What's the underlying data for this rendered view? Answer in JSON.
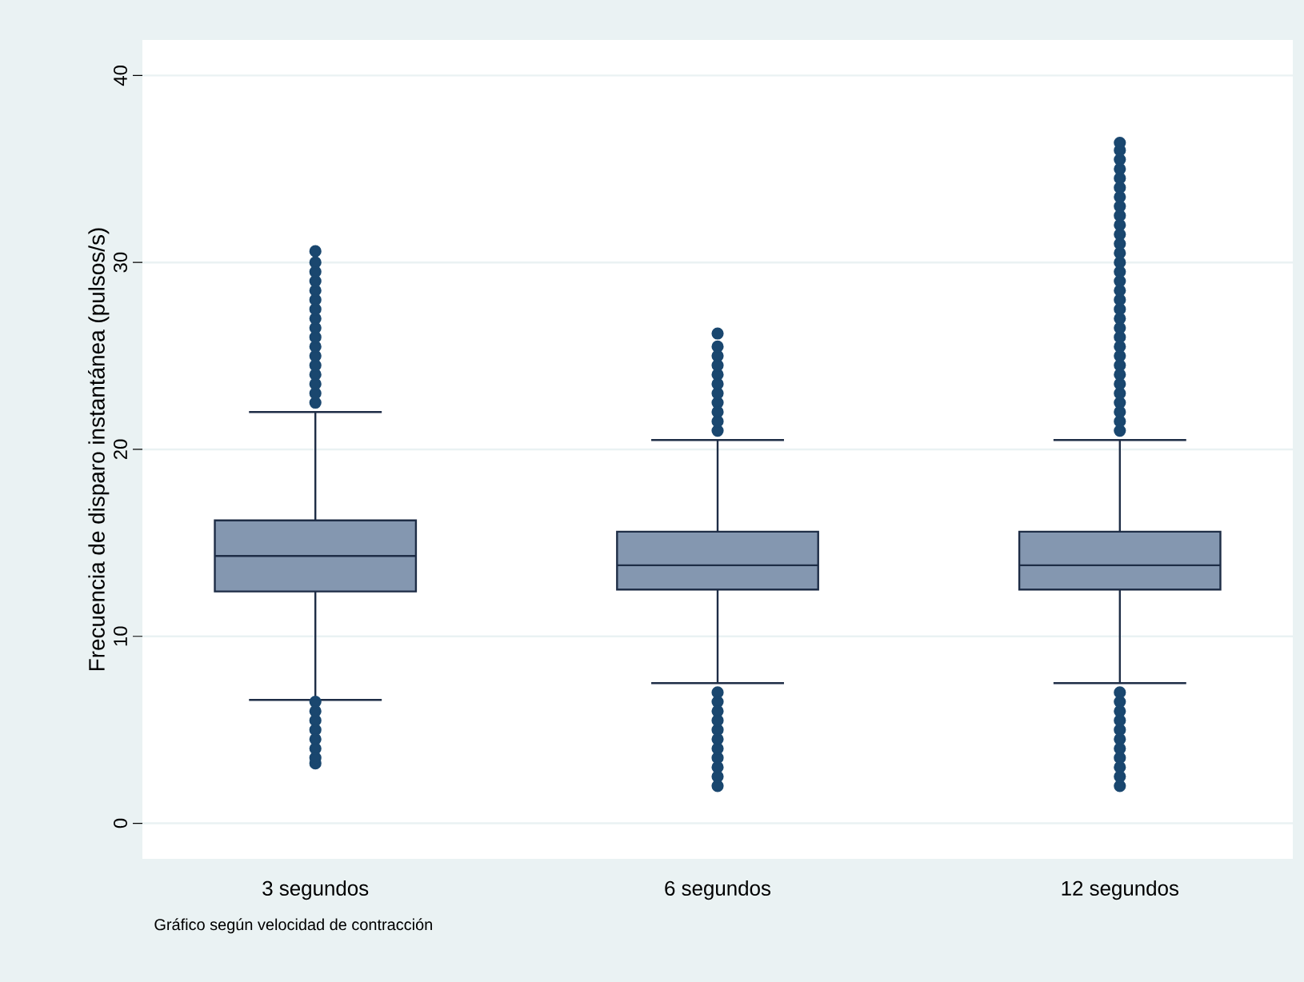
{
  "chart_data": {
    "type": "box",
    "ylabel": "Frecuencia de disparo instantánea (pulsos/s)",
    "categories": [
      "3 segundos",
      "6 segundos",
      "12 segundos"
    ],
    "color": "#8497b0",
    "boxes": [
      {
        "low": 6.6,
        "q1": 12.4,
        "median": 14.3,
        "q3": 16.2,
        "high": 22.0,
        "outliers": [
          3.2,
          3.5,
          4.0,
          4.5,
          5.0,
          5.5,
          6.0,
          6.5,
          22.5,
          23.0,
          23.5,
          24.0,
          24.5,
          25.0,
          25.5,
          26.0,
          26.5,
          27.0,
          27.5,
          28.0,
          28.5,
          29.0,
          29.5,
          30.0,
          30.6
        ]
      },
      {
        "low": 7.5,
        "q1": 12.5,
        "median": 13.8,
        "q3": 15.6,
        "high": 20.5,
        "outliers": [
          2.0,
          2.5,
          3.0,
          3.5,
          4.0,
          4.5,
          5.0,
          5.5,
          6.0,
          6.5,
          7.0,
          21.0,
          21.5,
          22.0,
          22.5,
          23.0,
          23.5,
          24.0,
          24.5,
          25.0,
          25.5,
          26.2
        ]
      },
      {
        "low": 7.5,
        "q1": 12.5,
        "median": 13.8,
        "q3": 15.6,
        "high": 20.5,
        "outliers": [
          2.0,
          2.5,
          3.0,
          3.5,
          4.0,
          4.5,
          5.0,
          5.5,
          6.0,
          6.5,
          7.0,
          21.0,
          21.5,
          22.0,
          22.5,
          23.0,
          23.5,
          24.0,
          24.5,
          25.0,
          25.5,
          26.0,
          26.5,
          27.0,
          27.5,
          28.0,
          28.5,
          29.0,
          29.5,
          30.0,
          30.5,
          31.0,
          31.5,
          32.0,
          32.5,
          33.0,
          33.5,
          34.0,
          34.5,
          35.0,
          35.5,
          36.0,
          36.4
        ]
      }
    ],
    "ylim": [
      -1.9,
      41.9
    ],
    "yticks": [
      0,
      10,
      20,
      30,
      40
    ],
    "grid": "y",
    "marker": "circle",
    "annotations": [
      "Gráfico según velocidad de contracción"
    ]
  }
}
